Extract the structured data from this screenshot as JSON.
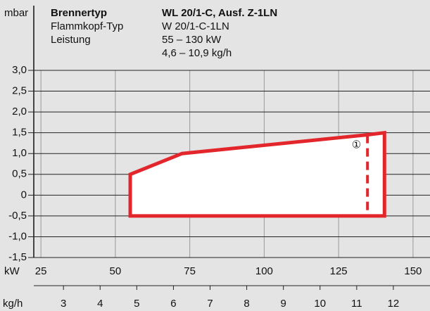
{
  "chart_data": {
    "type": "line",
    "y_label": "mbar",
    "x_label": "kW",
    "x2_label": "kg/h",
    "info": [
      {
        "label": "Brennertyp",
        "values": [
          "WL 20/1-C, Ausf. Z-1LN"
        ]
      },
      {
        "label": "Flammkopf-Typ",
        "values": [
          "W 20/1-C-1LN"
        ]
      },
      {
        "label": "Leistung",
        "values": [
          "55 – 130 kW",
          "4,6 – 10,9 kg/h"
        ]
      }
    ],
    "xlim": [
      22.6,
      155.7
    ],
    "xticks": [
      25,
      50,
      75,
      100,
      125,
      150
    ],
    "x2lim": [
      2.19,
      13.0
    ],
    "x2ticks": [
      3,
      4,
      5,
      6,
      7,
      8,
      9,
      10,
      11,
      12
    ],
    "ylim": [
      -1.5,
      3
    ],
    "yticks": [
      {
        "value": 3,
        "label": "3,0"
      },
      {
        "value": 2.5,
        "label": "2,5"
      },
      {
        "value": 2,
        "label": "2,0"
      },
      {
        "value": 1.5,
        "label": "1,5"
      },
      {
        "value": 1,
        "label": "1,0"
      },
      {
        "value": 0.5,
        "label": "0,5"
      },
      0,
      {
        "value": -0.5,
        "label": "-0,5"
      },
      {
        "value": -1,
        "label": "-1,0"
      },
      {
        "value": -1.5,
        "label": "-1,5"
      }
    ],
    "grid": true,
    "series": [
      {
        "color": "#e3262b",
        "x": [
          55,
          55,
          72.4,
          134.5,
          140.4,
          140.4,
          55
        ],
        "values": [
          -0.5,
          0.5,
          1.0,
          1.45,
          1.5,
          -0.5,
          -0.5
        ]
      }
    ],
    "limit_line": {
      "color": "#e3262b",
      "x": 134.7,
      "y": [
        1.45,
        -0.5
      ]
    },
    "annotation": {
      "text": "①",
      "x": 131,
      "y": 1.2
    }
  }
}
